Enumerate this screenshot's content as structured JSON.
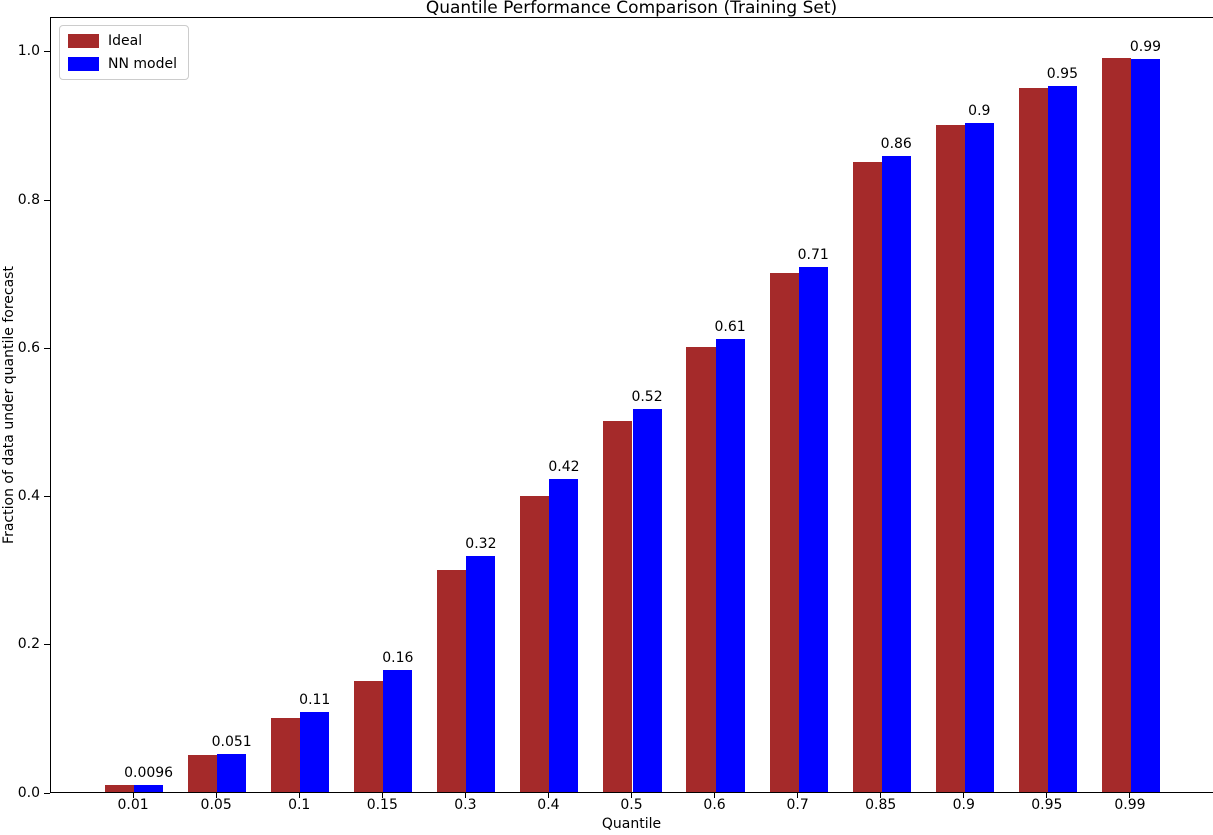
{
  "chart_data": {
    "type": "bar",
    "title": "Quantile Performance Comparison (Training Set)",
    "xlabel": "Quantile",
    "ylabel": "Fraction of data under quantile forecast",
    "categories": [
      "0.01",
      "0.05",
      "0.1",
      "0.15",
      "0.3",
      "0.4",
      "0.5",
      "0.6",
      "0.7",
      "0.85",
      "0.9",
      "0.95",
      "0.99"
    ],
    "series": [
      {
        "name": "Ideal",
        "color": "#a52a2a",
        "values": [
          0.01,
          0.05,
          0.1,
          0.15,
          0.3,
          0.4,
          0.5,
          0.6,
          0.7,
          0.85,
          0.9,
          0.95,
          0.99
        ]
      },
      {
        "name": "NN model",
        "color": "#0000ff",
        "values": [
          0.0096,
          0.051,
          0.108,
          0.164,
          0.319,
          0.422,
          0.517,
          0.611,
          0.709,
          0.858,
          0.903,
          0.952,
          0.9896
        ],
        "bar_labels": [
          "0.0096",
          "0.051",
          "0.11",
          "0.16",
          "0.32",
          "0.42",
          "0.52",
          "0.61",
          "0.71",
          "0.86",
          "0.9",
          "0.95",
          "0.99"
        ]
      }
    ],
    "y_ticks": [
      "0.0",
      "0.2",
      "0.4",
      "0.6",
      "0.8",
      "1.0"
    ],
    "ylim": [
      0,
      1.047
    ],
    "grid": false,
    "legend_position": "upper-left",
    "bar_label_series": "NN model",
    "axis_color": "#000000",
    "background_color": "#ffffff"
  }
}
